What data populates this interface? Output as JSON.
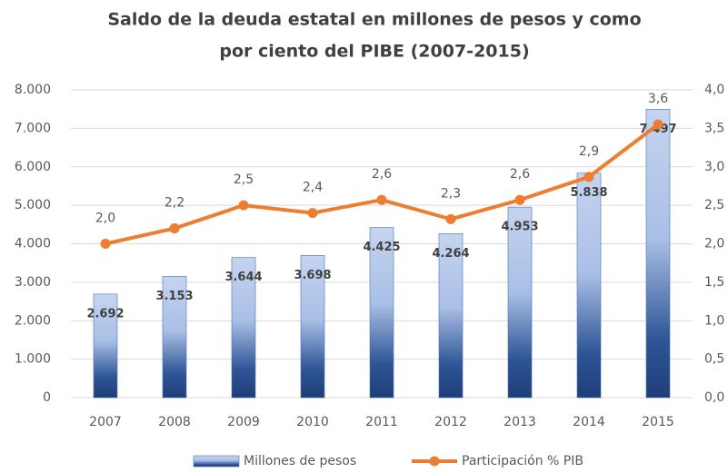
{
  "chart_data": {
    "type": "bar_line",
    "title": [
      "Saldo de la deuda estatal en millones de pesos y como",
      "por ciento del PIBE (2007-2015)"
    ],
    "categories": [
      "2007",
      "2008",
      "2009",
      "2010",
      "2011",
      "2012",
      "2013",
      "2014",
      "2015"
    ],
    "series": [
      {
        "name": "Millones de pesos",
        "type": "bar",
        "color": "#2a4f8f",
        "values": [
          2692,
          3153,
          3644,
          3698,
          4425,
          4264,
          4953,
          5838,
          7497
        ],
        "value_labels": [
          "2.692",
          "3.153",
          "3.644",
          "3.698",
          "4.425",
          "4.264",
          "4.953",
          "5.838",
          "7.497"
        ]
      },
      {
        "name": "Participación % PIB",
        "type": "line",
        "axis": "y2",
        "color": "#ed7d31",
        "values": [
          2.0,
          2.2,
          2.5,
          2.4,
          2.57,
          2.32,
          2.57,
          2.87,
          3.55
        ],
        "value_labels": [
          "2,0",
          "2,2",
          "2,5",
          "2,4",
          "2,6",
          "2,3",
          "2,6",
          "2,9",
          "3,6"
        ]
      }
    ],
    "ylim": [
      0,
      8000
    ],
    "yticks": [
      0,
      {
        "value": 1000,
        "label": "1.000"
      },
      {
        "value": 2000,
        "label": "2.000"
      },
      {
        "value": 3000,
        "label": "3.000"
      },
      {
        "value": 4000,
        "label": "4.000"
      },
      {
        "value": 5000,
        "label": "5.000"
      },
      {
        "value": 6000,
        "label": "6.000"
      },
      {
        "value": 7000,
        "label": "7.000"
      },
      {
        "value": 8000,
        "label": "8.000"
      }
    ],
    "y2lim": [
      0,
      4
    ],
    "y2ticks": [
      {
        "value": 0,
        "label": "0,0"
      },
      {
        "value": 0.5,
        "label": "0,5"
      },
      {
        "value": 1,
        "label": "1,0"
      },
      {
        "value": 1.5,
        "label": "1,5"
      },
      {
        "value": 2,
        "label": "2,0"
      },
      {
        "value": 2.5,
        "label": "2,5"
      },
      {
        "value": 3,
        "label": "3,0"
      },
      {
        "value": 3.5,
        "label": "3,5"
      },
      {
        "value": 4,
        "label": "4,0"
      }
    ],
    "grid": true,
    "legend": "bottom"
  }
}
